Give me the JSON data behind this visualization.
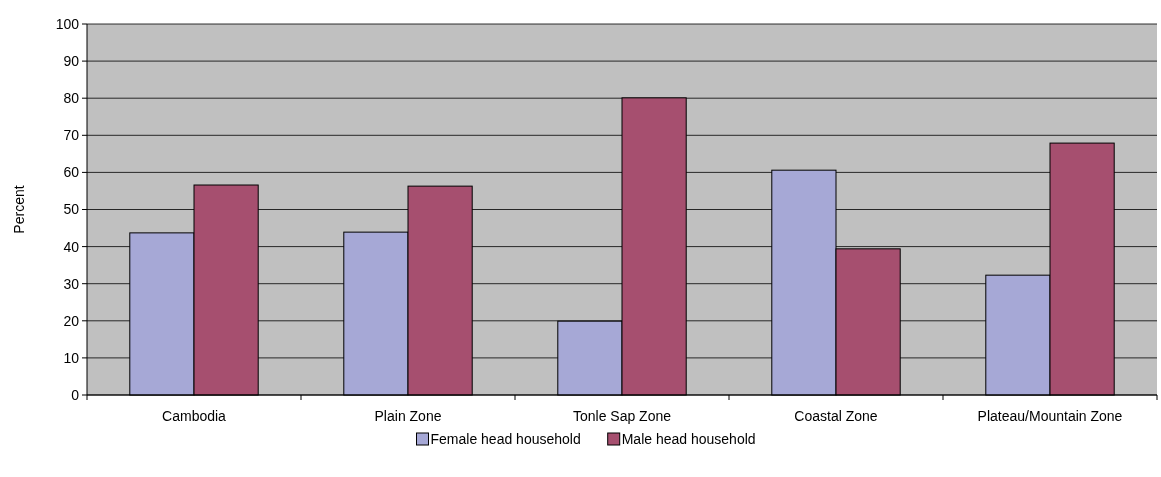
{
  "chart_data": {
    "type": "bar",
    "ylabel": "Percent",
    "categories": [
      "Cambodia",
      "Plain Zone",
      "Tonle Sap Zone",
      "Coastal Zone",
      "Plateau/Mountain Zone"
    ],
    "series": [
      {
        "name": "Female head household",
        "color": "#a6a8d6",
        "values": [
          43.7,
          43.9,
          19.9,
          60.6,
          32.3
        ]
      },
      {
        "name": "Male head household",
        "color": "#a64f6f",
        "values": [
          56.6,
          56.3,
          80.1,
          39.4,
          67.9
        ]
      }
    ],
    "ylim": [
      0,
      100
    ],
    "yticks": [
      0,
      10,
      20,
      30,
      40,
      50,
      60,
      70,
      80,
      90,
      100
    ],
    "grid": "y",
    "legend": "bottom"
  }
}
